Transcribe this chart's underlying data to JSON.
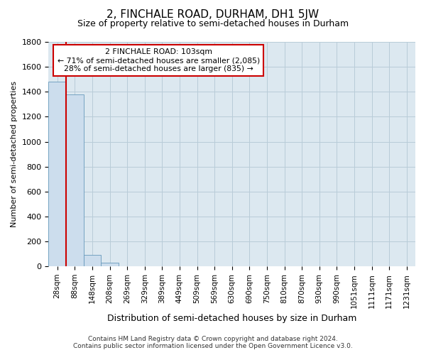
{
  "title": "2, FINCHALE ROAD, DURHAM, DH1 5JW",
  "subtitle": "Size of property relative to semi-detached houses in Durham",
  "xlabel": "Distribution of semi-detached houses by size in Durham",
  "ylabel": "Number of semi-detached properties",
  "bin_labels": [
    "28sqm",
    "88sqm",
    "148sqm",
    "208sqm",
    "269sqm",
    "329sqm",
    "389sqm",
    "449sqm",
    "509sqm",
    "569sqm",
    "630sqm",
    "690sqm",
    "750sqm",
    "810sqm",
    "870sqm",
    "930sqm",
    "990sqm",
    "1051sqm",
    "1111sqm",
    "1171sqm",
    "1231sqm"
  ],
  "bar_values": [
    1480,
    1380,
    95,
    28,
    0,
    0,
    0,
    0,
    0,
    0,
    0,
    0,
    0,
    0,
    0,
    0,
    0,
    0,
    0,
    0,
    0
  ],
  "bar_color": "#ccdded",
  "bar_edge_color": "#6699bb",
  "annotation_line1": "2 FINCHALE ROAD: 103sqm",
  "annotation_line2": "← 71% of semi-detached houses are smaller (2,085)",
  "annotation_line3": "28% of semi-detached houses are larger (835) →",
  "ymax": 1800,
  "yticks": [
    0,
    200,
    400,
    600,
    800,
    1000,
    1200,
    1400,
    1600,
    1800
  ],
  "red_line_color": "#cc0000",
  "annotation_box_color": "#ffffff",
  "annotation_box_edge": "#cc0000",
  "footer_line1": "Contains HM Land Registry data © Crown copyright and database right 2024.",
  "footer_line2": "Contains public sector information licensed under the Open Government Licence v3.0.",
  "plot_bg_color": "#dce8f0",
  "background_color": "#ffffff",
  "grid_color": "#b8ccd8"
}
